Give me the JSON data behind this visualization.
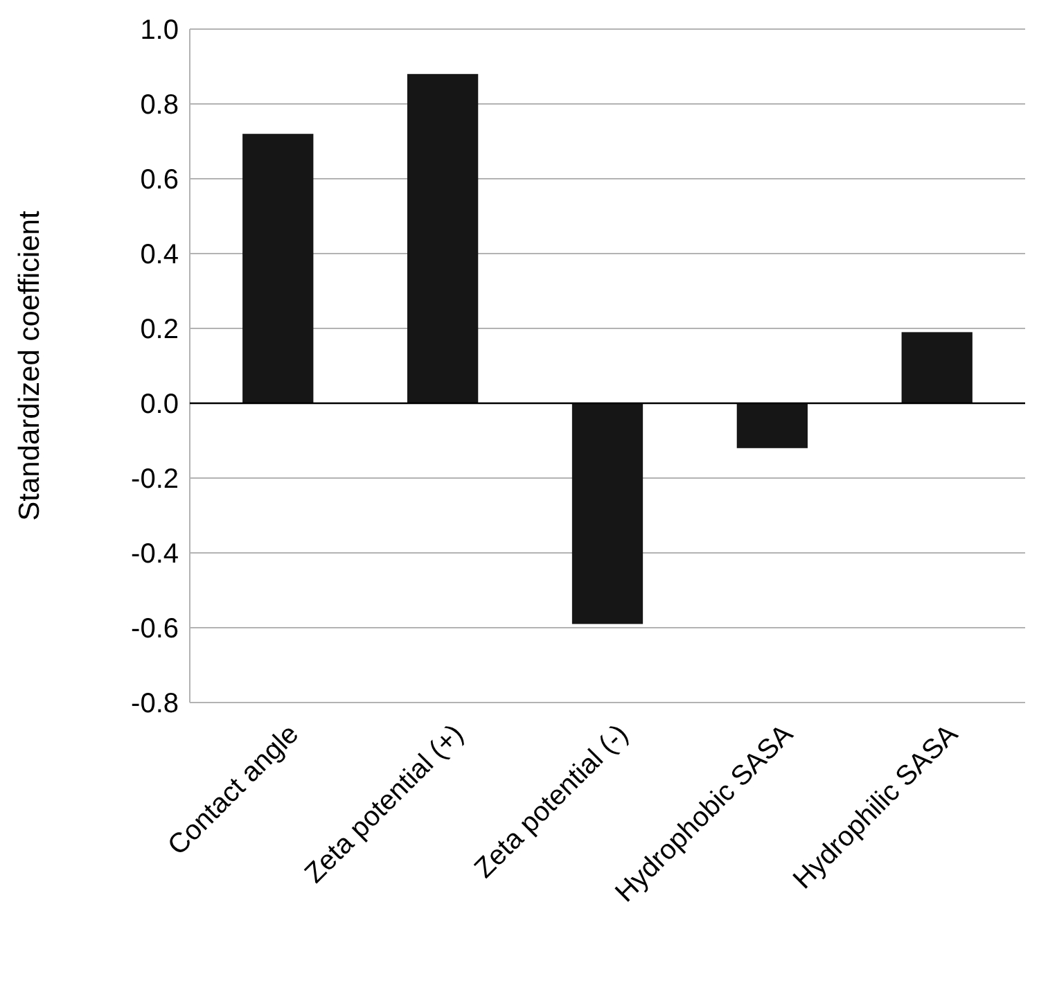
{
  "chart_data": {
    "type": "bar",
    "ylabel": "Standardized coefficient",
    "categories": [
      "Contact angle",
      "Zeta potential (+)",
      "Zeta potential (-)",
      "Hydrophobic SASA",
      "Hydrophilic SASA"
    ],
    "values": [
      0.72,
      0.88,
      -0.59,
      -0.12,
      0.19
    ],
    "color": "#161616",
    "ylim": [
      -0.8,
      1.0
    ],
    "yticks": [
      {
        "value": -0.8,
        "label": "-0.8"
      },
      {
        "value": -0.6,
        "label": "-0.6"
      },
      {
        "value": -0.4,
        "label": "-0.4"
      },
      {
        "value": -0.2,
        "label": "-0.2"
      },
      {
        "value": 0,
        "label": "0.0"
      },
      {
        "value": 0.2,
        "label": "0.2"
      },
      {
        "value": 0.4,
        "label": "0.4"
      },
      {
        "value": 0.6,
        "label": "0.6"
      },
      {
        "value": 0.8,
        "label": "0.8"
      },
      {
        "value": 1.0,
        "label": "1.0"
      }
    ],
    "grid": "y"
  }
}
